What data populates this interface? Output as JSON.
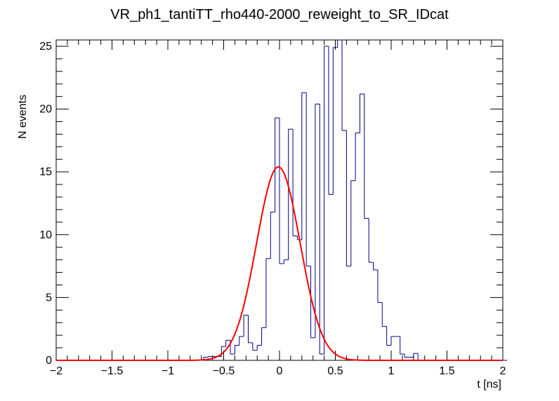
{
  "chart_data": {
    "type": "histogram",
    "title": "VR_ph1_tantiTT_rho440-2000_reweight_to_SR_IDcat",
    "xlabel": "t [ns]",
    "ylabel": "N events",
    "xlim": [
      -2,
      2
    ],
    "ylim": [
      0,
      25.5
    ],
    "x_ticks": [
      -2,
      -1.5,
      -1,
      -0.5,
      0,
      0.5,
      1,
      1.5,
      2
    ],
    "x_tick_labels": [
      "−2",
      "−1.5",
      "−1",
      "−0.5",
      "0",
      "0.5",
      "1",
      "1.5",
      "2"
    ],
    "y_ticks": [
      0,
      5,
      10,
      15,
      20,
      25
    ],
    "y_tick_labels": [
      "0",
      "5",
      "10",
      "15",
      "20",
      "25"
    ],
    "bin_width": 0.04,
    "bin_edges_start": -2.0,
    "histogram_color": "#000080",
    "fit_color": "#ff0000",
    "series": [
      {
        "name": "histogram",
        "values": [
          0,
          0,
          0,
          0,
          0,
          0,
          0,
          0,
          0,
          0,
          0,
          0,
          0,
          0,
          0,
          0,
          0,
          0,
          0,
          0,
          0,
          0,
          0,
          0,
          0,
          0,
          0,
          0,
          0,
          0,
          0,
          0,
          0,
          0.25,
          0.3,
          0.3,
          0.3,
          1.1,
          1.6,
          0.5,
          1.2,
          1.9,
          3.6,
          1.4,
          0.8,
          1.2,
          2.6,
          8.1,
          11.8,
          19.3,
          7.7,
          8.0,
          18.4,
          9.9,
          9.6,
          21.3,
          7.5,
          1.8,
          20.4,
          0.5,
          25.0,
          13.2,
          24.9,
          25.5,
          18.3,
          7.5,
          14.3,
          18.1,
          21.2,
          11.3,
          7.8,
          7.2,
          4.6,
          2.7,
          1.2,
          1.9,
          1.9,
          0.5,
          0.25,
          0.25,
          0.55,
          0,
          0,
          0,
          0,
          0,
          0,
          0,
          0,
          0,
          0,
          0,
          0,
          0,
          0,
          0,
          0,
          0,
          0,
          0,
          0
        ]
      },
      {
        "name": "gaussian_fit",
        "amplitude": 15.4,
        "mean": -0.01,
        "sigma": 0.195
      }
    ]
  }
}
